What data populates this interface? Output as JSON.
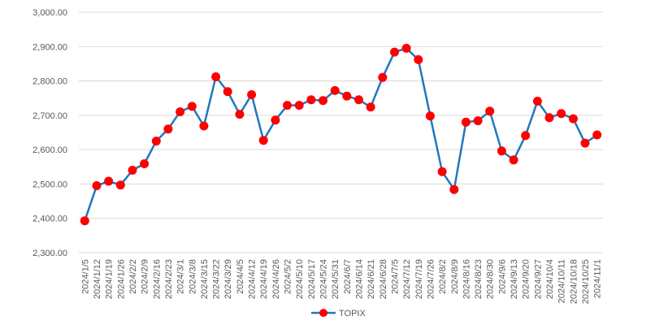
{
  "chart_data": {
    "type": "line",
    "title": "",
    "xlabel": "",
    "ylabel": "",
    "ylim": [
      2300,
      3000
    ],
    "y_tick_step": 100,
    "y_tick_labels": [
      "2,300.00",
      "2,400.00",
      "2,500.00",
      "2,600.00",
      "2,700.00",
      "2,800.00",
      "2,900.00",
      "3,000.00"
    ],
    "grid": "horizontal",
    "legend_position": "bottom",
    "colors": {
      "line": "#1f77c0",
      "marker": "#ff0000",
      "grid": "#d9d9d9",
      "axis_text": "#595959"
    },
    "categories": [
      "2024/1/5",
      "2024/1/12",
      "2024/1/19",
      "2024/1/26",
      "2024/2/2",
      "2024/2/9",
      "2024/2/16",
      "2024/2/23",
      "2024/3/1",
      "2024/3/8",
      "2024/3/15",
      "2024/3/22",
      "2024/3/29",
      "2024/4/5",
      "2024/4/12",
      "2024/4/19",
      "2024/4/26",
      "2024/5/2",
      "2024/5/10",
      "2024/5/17",
      "2024/5/24",
      "2024/5/31",
      "2024/6/7",
      "2024/6/14",
      "2024/6/21",
      "2024/6/28",
      "2024/7/5",
      "2024/7/12",
      "2024/7/19",
      "2024/7/26",
      "2024/8/2",
      "2024/8/9",
      "2024/8/16",
      "2024/8/23",
      "2024/8/30",
      "2024/9/6",
      "2024/9/13",
      "2024/9/20",
      "2024/9/27",
      "2024/10/4",
      "2024/10/11",
      "2024/10/18",
      "2024/10/25",
      "2024/11/1"
    ],
    "series": [
      {
        "name": "TOPIX",
        "values": [
          2393,
          2495,
          2508,
          2497,
          2540,
          2559,
          2625,
          2660,
          2710,
          2726,
          2669,
          2812,
          2769,
          2703,
          2760,
          2627,
          2686,
          2729,
          2729,
          2745,
          2743,
          2772,
          2756,
          2745,
          2724,
          2810,
          2884,
          2895,
          2862,
          2698,
          2536,
          2484,
          2680,
          2684,
          2712,
          2596,
          2570,
          2641,
          2741,
          2693,
          2705,
          2690,
          2619,
          2643
        ]
      }
    ]
  }
}
